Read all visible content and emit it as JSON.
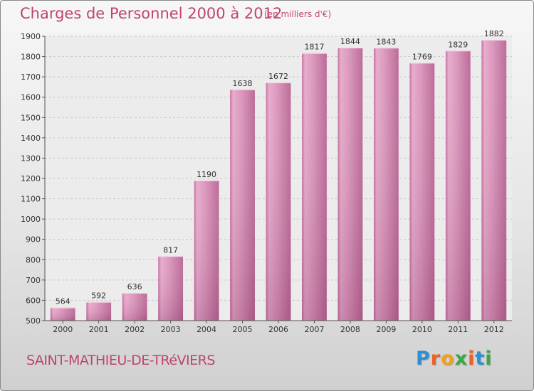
{
  "chart_data": {
    "type": "bar",
    "title": "Charges de Personnel 2000 à 2012",
    "subtitle": "(en milliers d'€)",
    "categories": [
      "2000",
      "2001",
      "2002",
      "2003",
      "2004",
      "2005",
      "2006",
      "2007",
      "2008",
      "2009",
      "2010",
      "2011",
      "2012"
    ],
    "values": [
      564,
      592,
      636,
      817,
      1190,
      1638,
      1672,
      1817,
      1844,
      1843,
      1769,
      1829,
      1882
    ],
    "ylim": [
      500,
      1900
    ],
    "yticks": [
      500,
      600,
      700,
      800,
      900,
      1000,
      1100,
      1200,
      1300,
      1400,
      1500,
      1600,
      1700,
      1800,
      1900
    ],
    "grid": true,
    "bar_color": "#d98fb7"
  },
  "footer": {
    "commune": "SAINT-MATHIEU-DE-TRéVIERS",
    "logo_letters": [
      "P",
      "r",
      "o",
      "x",
      "i",
      "t",
      "i"
    ],
    "logo_colors": [
      "#2f8fd0",
      "#e8632b",
      "#f0a020",
      "#3aa845",
      "#e8632b",
      "#2f8fd0",
      "#3aa845"
    ]
  }
}
